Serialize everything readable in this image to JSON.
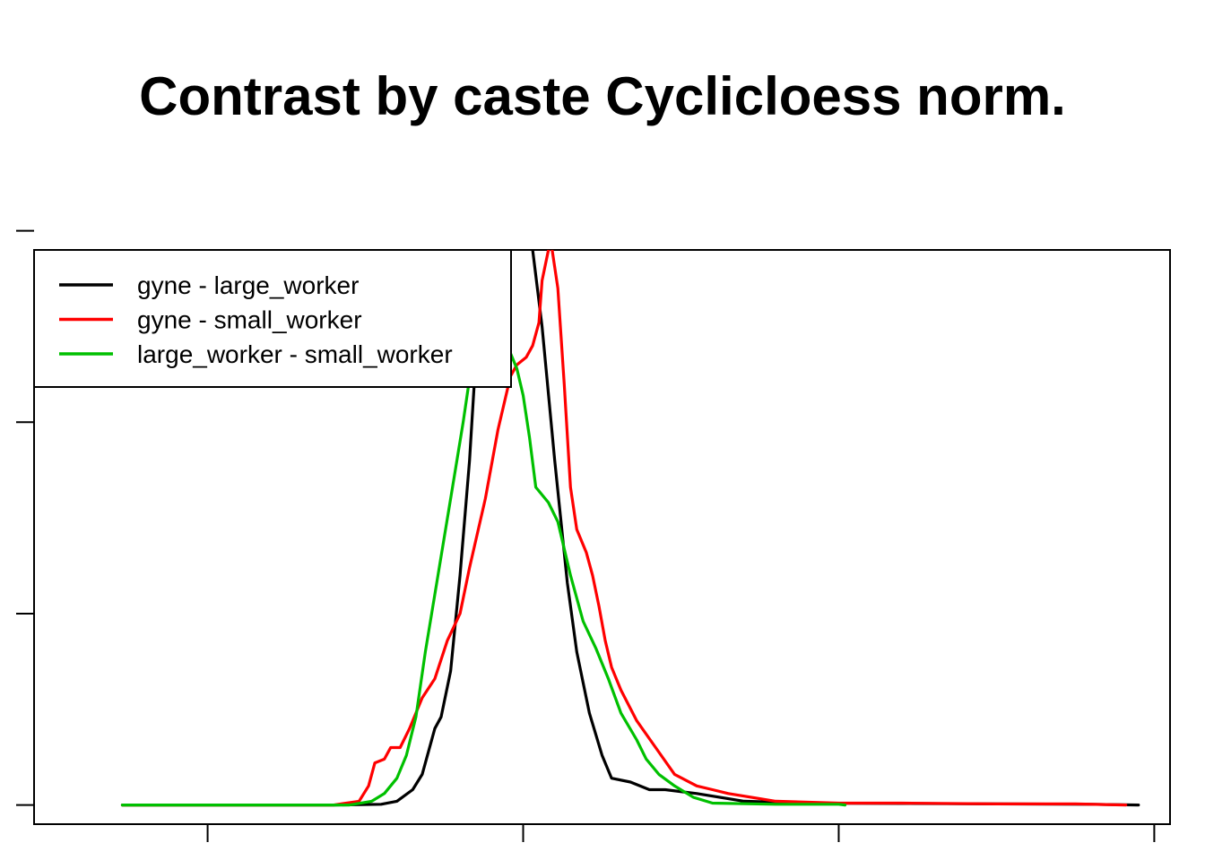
{
  "chart_data": {
    "type": "line",
    "title": "Contrast by caste Cyclicloess norm.",
    "xlabel": "",
    "ylabel": "",
    "xlim": [
      -1.55,
      2.05
    ],
    "ylim": [
      -0.05,
      1.45
    ],
    "x_ticks": [
      -1,
      0,
      1,
      2
    ],
    "y_ticks": [
      0,
      0.5,
      1,
      1.5
    ],
    "tick_labels_shown": false,
    "grid": false,
    "legend_position": "top-left",
    "series": [
      {
        "name": "gyne - large_worker",
        "color": "#000000",
        "points": [
          [
            -1.27,
            0
          ],
          [
            -0.6,
            0
          ],
          [
            -0.45,
            0.002
          ],
          [
            -0.4,
            0.01
          ],
          [
            -0.35,
            0.04
          ],
          [
            -0.32,
            0.08
          ],
          [
            -0.28,
            0.2
          ],
          [
            -0.26,
            0.23
          ],
          [
            -0.23,
            0.35
          ],
          [
            -0.2,
            0.6
          ],
          [
            -0.17,
            0.9
          ],
          [
            -0.14,
            1.3
          ],
          [
            -0.12,
            1.6
          ],
          [
            -0.08,
            1.9
          ],
          [
            -0.05,
            1.95
          ],
          [
            0,
            1.6
          ],
          [
            0.03,
            1.45
          ],
          [
            0.06,
            1.25
          ],
          [
            0.1,
            0.9
          ],
          [
            0.14,
            0.58
          ],
          [
            0.17,
            0.4
          ],
          [
            0.21,
            0.24
          ],
          [
            0.25,
            0.13
          ],
          [
            0.28,
            0.07
          ],
          [
            0.34,
            0.06
          ],
          [
            0.4,
            0.04
          ],
          [
            0.45,
            0.04
          ],
          [
            0.55,
            0.03
          ],
          [
            0.7,
            0.01
          ],
          [
            0.9,
            0.005
          ],
          [
            1.2,
            0.004
          ],
          [
            1.5,
            0.003
          ],
          [
            1.8,
            0.002
          ],
          [
            1.95,
            0
          ]
        ]
      },
      {
        "name": "gyne - small_worker",
        "color": "#ff0000",
        "points": [
          [
            -1.27,
            0
          ],
          [
            -0.6,
            0
          ],
          [
            -0.52,
            0.01
          ],
          [
            -0.49,
            0.05
          ],
          [
            -0.47,
            0.11
          ],
          [
            -0.44,
            0.12
          ],
          [
            -0.42,
            0.15
          ],
          [
            -0.39,
            0.15
          ],
          [
            -0.36,
            0.2
          ],
          [
            -0.32,
            0.28
          ],
          [
            -0.28,
            0.33
          ],
          [
            -0.24,
            0.43
          ],
          [
            -0.2,
            0.5
          ],
          [
            -0.17,
            0.62
          ],
          [
            -0.12,
            0.8
          ],
          [
            -0.08,
            0.98
          ],
          [
            -0.04,
            1.12
          ],
          [
            -0.02,
            1.15
          ],
          [
            0.01,
            1.17
          ],
          [
            0.03,
            1.2
          ],
          [
            0.05,
            1.26
          ],
          [
            0.06,
            1.37
          ],
          [
            0.08,
            1.45
          ],
          [
            0.09,
            1.46
          ],
          [
            0.11,
            1.35
          ],
          [
            0.13,
            1.1
          ],
          [
            0.15,
            0.83
          ],
          [
            0.17,
            0.72
          ],
          [
            0.2,
            0.66
          ],
          [
            0.22,
            0.6
          ],
          [
            0.24,
            0.52
          ],
          [
            0.26,
            0.43
          ],
          [
            0.28,
            0.36
          ],
          [
            0.31,
            0.3
          ],
          [
            0.36,
            0.22
          ],
          [
            0.42,
            0.15
          ],
          [
            0.48,
            0.08
          ],
          [
            0.55,
            0.05
          ],
          [
            0.6,
            0.04
          ],
          [
            0.65,
            0.03
          ],
          [
            0.8,
            0.01
          ],
          [
            1.0,
            0.005
          ],
          [
            1.2,
            0.005
          ],
          [
            1.5,
            0.003
          ],
          [
            1.75,
            0.003
          ],
          [
            1.91,
            0
          ]
        ]
      },
      {
        "name": "large_worker - small_worker",
        "color": "#00c000",
        "points": [
          [
            -1.27,
            0
          ],
          [
            -0.55,
            0
          ],
          [
            -0.48,
            0.01
          ],
          [
            -0.44,
            0.03
          ],
          [
            -0.4,
            0.07
          ],
          [
            -0.37,
            0.13
          ],
          [
            -0.34,
            0.23
          ],
          [
            -0.31,
            0.4
          ],
          [
            -0.27,
            0.6
          ],
          [
            -0.23,
            0.8
          ],
          [
            -0.19,
            1.0
          ],
          [
            -0.16,
            1.17
          ],
          [
            -0.14,
            1.29
          ],
          [
            -0.1,
            1.3
          ],
          [
            -0.07,
            1.25
          ],
          [
            -0.04,
            1.18
          ],
          [
            -0.02,
            1.14
          ],
          [
            0,
            1.07
          ],
          [
            0.02,
            0.96
          ],
          [
            0.04,
            0.83
          ],
          [
            0.08,
            0.79
          ],
          [
            0.11,
            0.74
          ],
          [
            0.15,
            0.6
          ],
          [
            0.19,
            0.48
          ],
          [
            0.23,
            0.41
          ],
          [
            0.27,
            0.33
          ],
          [
            0.31,
            0.24
          ],
          [
            0.36,
            0.17
          ],
          [
            0.39,
            0.12
          ],
          [
            0.43,
            0.08
          ],
          [
            0.48,
            0.05
          ],
          [
            0.54,
            0.02
          ],
          [
            0.6,
            0.005
          ],
          [
            0.8,
            0.002
          ],
          [
            1.0,
            0.002
          ],
          [
            1.02,
            0
          ]
        ]
      }
    ]
  }
}
